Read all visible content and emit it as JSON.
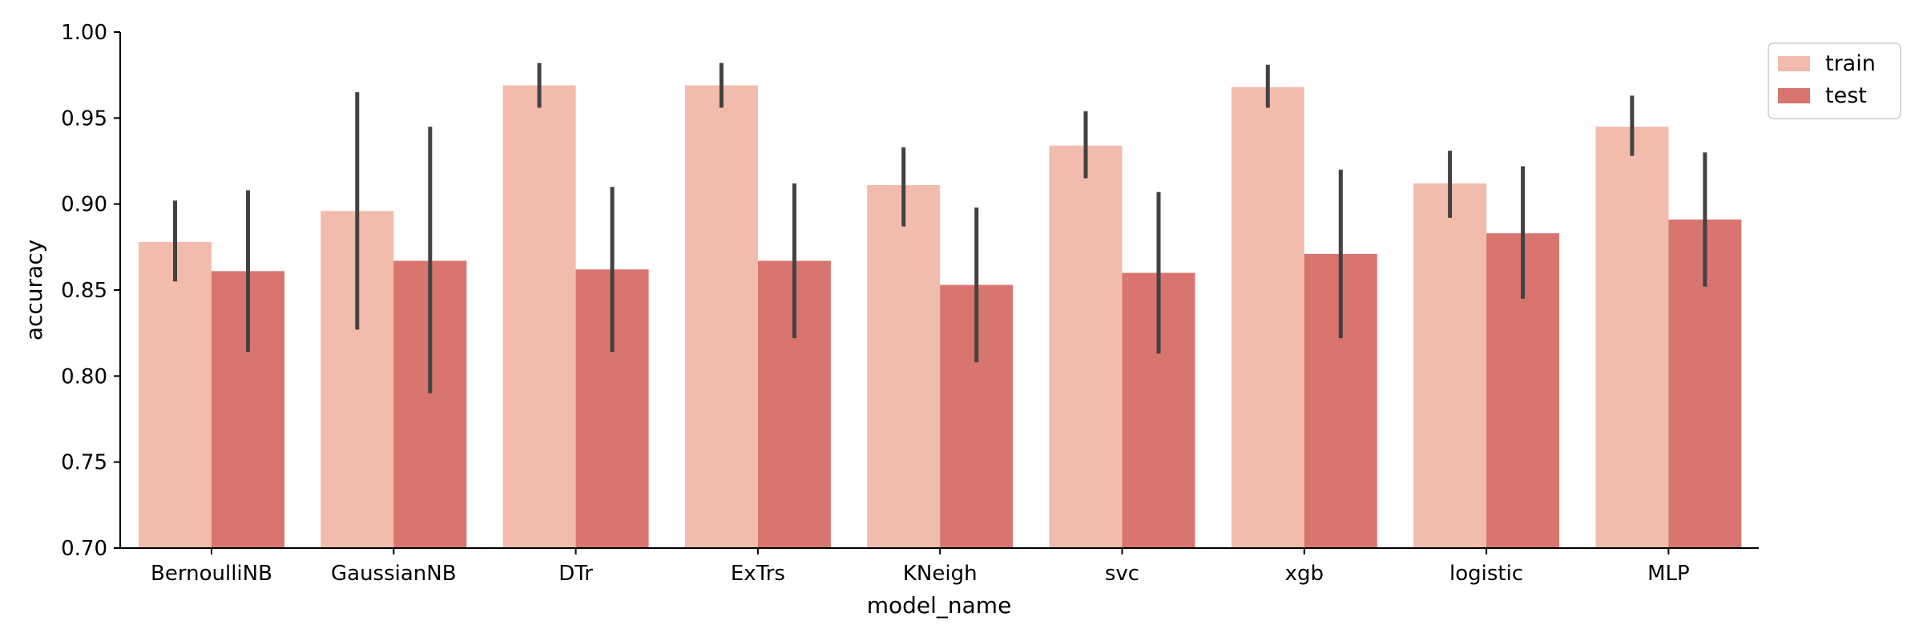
{
  "chart_data": {
    "type": "bar",
    "xlabel": "model_name",
    "ylabel": "accuracy",
    "ylim": [
      0.7,
      1.0
    ],
    "yticks": [
      "0.70",
      "0.75",
      "0.80",
      "0.85",
      "0.90",
      "0.95",
      "1.00"
    ],
    "categories": [
      "BernoulliNB",
      "GaussianNB",
      "DTr",
      "ExTrs",
      "KNeigh",
      "svc",
      "xgb",
      "logistic",
      "MLP"
    ],
    "series": [
      {
        "name": "train",
        "color": "#f1bcab",
        "values": [
          0.878,
          0.896,
          0.969,
          0.969,
          0.911,
          0.934,
          0.968,
          0.912,
          0.945
        ],
        "error_low": [
          0.855,
          0.827,
          0.956,
          0.956,
          0.887,
          0.915,
          0.956,
          0.892,
          0.928
        ],
        "error_high": [
          0.902,
          0.965,
          0.982,
          0.982,
          0.933,
          0.954,
          0.981,
          0.931,
          0.963
        ]
      },
      {
        "name": "test",
        "color": "#d8756e",
        "values": [
          0.861,
          0.867,
          0.862,
          0.867,
          0.853,
          0.86,
          0.871,
          0.883,
          0.891
        ],
        "error_low": [
          0.814,
          0.79,
          0.814,
          0.822,
          0.808,
          0.813,
          0.822,
          0.845,
          0.852
        ],
        "error_high": [
          0.908,
          0.945,
          0.91,
          0.912,
          0.898,
          0.907,
          0.92,
          0.922,
          0.93
        ]
      }
    ],
    "error_color": "#424242",
    "legend_position": "upper-right-outside",
    "grid": false
  }
}
